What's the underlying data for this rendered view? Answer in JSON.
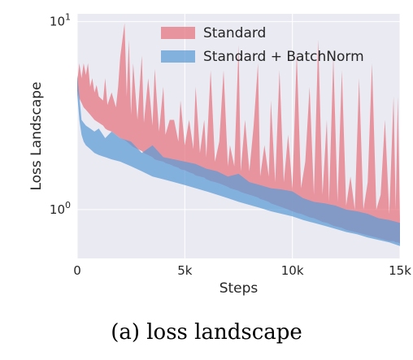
{
  "chart_data": {
    "type": "area",
    "xlabel": "Steps",
    "ylabel": "Loss Landscape",
    "yscale": "log",
    "xlim": [
      0,
      15000
    ],
    "ylim": [
      0.55,
      11
    ],
    "grid": true,
    "legend_position": "top-right",
    "x_ticks": [
      {
        "value": 0,
        "label": "0"
      },
      {
        "value": 5000,
        "label": "5k"
      },
      {
        "value": 10000,
        "label": "10k"
      },
      {
        "value": 15000,
        "label": "15k"
      }
    ],
    "y_ticks": [
      {
        "value": 1,
        "label_base": "10",
        "label_exp": "0"
      },
      {
        "value": 10,
        "label_base": "10",
        "label_exp": "1"
      }
    ],
    "series": [
      {
        "name": "Standard",
        "color": "#e8737e",
        "x": [
          0,
          100,
          200,
          300,
          400,
          500,
          600,
          700,
          800,
          900,
          1000,
          1200,
          1300,
          1400,
          1600,
          1800,
          1900,
          2000,
          2200,
          2300,
          2400,
          2500,
          2600,
          2800,
          3000,
          3100,
          3300,
          3500,
          3600,
          3800,
          4000,
          4100,
          4300,
          4500,
          4700,
          4800,
          5000,
          5200,
          5400,
          5500,
          5700,
          5900,
          6000,
          6200,
          6400,
          6600,
          6800,
          7000,
          7100,
          7300,
          7500,
          7600,
          7800,
          8000,
          8200,
          8400,
          8500,
          8700,
          8900,
          9000,
          9200,
          9400,
          9600,
          9800,
          10000,
          10200,
          10400,
          10600,
          10800,
          11000,
          11200,
          11400,
          11600,
          11700,
          11900,
          12100,
          12300,
          12500,
          12700,
          12900,
          13100,
          13300,
          13500,
          13700,
          13900,
          14100,
          14300,
          14500,
          14700,
          14800,
          14900,
          15000
        ],
        "lower": [
          4.3,
          3.9,
          3.7,
          3.5,
          3.4,
          3.3,
          3.2,
          3.1,
          3.0,
          2.95,
          2.9,
          2.8,
          2.7,
          2.65,
          2.6,
          2.5,
          2.45,
          2.4,
          2.35,
          2.3,
          2.25,
          2.2,
          2.15,
          2.1,
          2.05,
          2.0,
          1.95,
          1.9,
          1.85,
          1.82,
          1.8,
          1.77,
          1.74,
          1.7,
          1.67,
          1.64,
          1.62,
          1.58,
          1.55,
          1.52,
          1.5,
          1.48,
          1.45,
          1.42,
          1.4,
          1.38,
          1.35,
          1.32,
          1.3,
          1.28,
          1.26,
          1.24,
          1.22,
          1.2,
          1.18,
          1.16,
          1.14,
          1.12,
          1.1,
          1.08,
          1.06,
          1.04,
          1.02,
          1.0,
          0.98,
          0.96,
          0.95,
          0.93,
          0.91,
          0.9,
          0.88,
          0.86,
          0.85,
          0.84,
          0.82,
          0.81,
          0.8,
          0.78,
          0.77,
          0.76,
          0.75,
          0.74,
          0.73,
          0.72,
          0.71,
          0.7,
          0.69,
          0.68,
          0.68,
          0.67,
          0.67,
          0.66
        ],
        "upper": [
          4.8,
          6.0,
          5.0,
          6.0,
          5.2,
          6.0,
          4.5,
          5.0,
          4.2,
          4.6,
          4.0,
          3.8,
          5.0,
          3.6,
          4.2,
          3.5,
          4.5,
          6.5,
          9.8,
          4.0,
          8.0,
          3.2,
          6.0,
          3.0,
          6.6,
          2.9,
          5.0,
          2.8,
          5.6,
          2.6,
          4.5,
          2.5,
          3.0,
          3.0,
          2.3,
          3.8,
          2.2,
          3.0,
          2.1,
          4.5,
          2.0,
          3.0,
          1.9,
          5.5,
          1.8,
          2.3,
          5.5,
          1.7,
          2.2,
          1.7,
          7.5,
          1.6,
          3.0,
          1.6,
          2.8,
          6.0,
          1.5,
          2.2,
          1.5,
          3.8,
          1.4,
          5.5,
          1.4,
          2.5,
          1.3,
          6.8,
          1.3,
          1.8,
          4.5,
          1.2,
          8.0,
          1.2,
          3.0,
          1.1,
          6.5,
          1.1,
          5.5,
          1.05,
          1.5,
          1.0,
          5.0,
          1.0,
          1.4,
          6.0,
          1.0,
          1.2,
          3.0,
          0.95,
          4.0,
          1.0,
          4.0,
          0.9
        ]
      },
      {
        "name": "Standard + BatchNorm",
        "color": "#5b9bd5",
        "x": [
          0,
          100,
          200,
          300,
          400,
          600,
          800,
          1000,
          1300,
          1600,
          2000,
          2500,
          3000,
          3500,
          4000,
          4500,
          5000,
          5500,
          6000,
          6500,
          7000,
          7500,
          8000,
          8500,
          9000,
          9500,
          10000,
          10500,
          11000,
          11500,
          12000,
          12500,
          13000,
          13500,
          14000,
          14500,
          15000
        ],
        "lower": [
          4.1,
          3.0,
          2.5,
          2.3,
          2.2,
          2.1,
          2.0,
          1.95,
          1.9,
          1.85,
          1.8,
          1.7,
          1.6,
          1.5,
          1.45,
          1.4,
          1.35,
          1.3,
          1.25,
          1.2,
          1.15,
          1.1,
          1.06,
          1.02,
          0.98,
          0.95,
          0.92,
          0.88,
          0.85,
          0.82,
          0.79,
          0.76,
          0.74,
          0.71,
          0.69,
          0.67,
          0.64
        ],
        "upper": [
          5.2,
          4.0,
          3.0,
          2.9,
          2.8,
          2.7,
          2.6,
          2.7,
          2.4,
          2.6,
          2.4,
          2.3,
          2.0,
          2.2,
          1.9,
          1.85,
          1.8,
          1.75,
          1.65,
          1.6,
          1.5,
          1.55,
          1.4,
          1.35,
          1.3,
          1.28,
          1.25,
          1.15,
          1.1,
          1.08,
          1.05,
          1.0,
          0.98,
          0.95,
          0.9,
          0.88,
          0.85
        ]
      }
    ]
  },
  "caption": "(a) loss landscape"
}
